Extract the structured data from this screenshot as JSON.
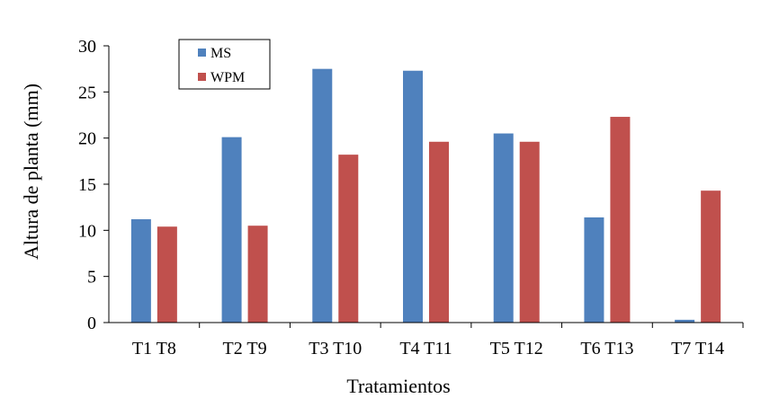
{
  "chart_data": {
    "type": "bar",
    "title": "",
    "xlabel": "Tratamientos",
    "ylabel": "Altura de planta (mm)",
    "ylim": [
      0,
      30
    ],
    "yticks": [
      0,
      5,
      10,
      15,
      20,
      25,
      30
    ],
    "categories": [
      "T1 T8",
      "T2 T9",
      "T3 T10",
      "T4 T11",
      "T5 T12",
      "T6 T13",
      "T7 T14"
    ],
    "series": [
      {
        "name": "MS",
        "color": "#4f81bd",
        "values": [
          11.2,
          20.1,
          27.5,
          27.3,
          20.5,
          11.4,
          0.3
        ]
      },
      {
        "name": "WPM",
        "color": "#c0504d",
        "values": [
          10.4,
          10.5,
          18.2,
          19.6,
          19.6,
          22.3,
          14.3
        ]
      }
    ],
    "legend_position": "top-left",
    "grid": false
  }
}
